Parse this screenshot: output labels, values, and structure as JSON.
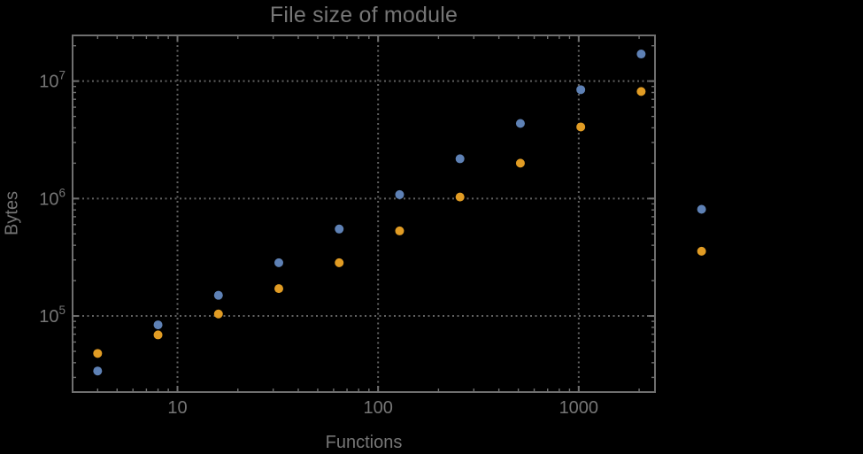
{
  "colors": {
    "background": "#000000",
    "frame": "#6f6f6f",
    "grid": "#616161",
    "text": "#767676",
    "series_blue": "#5e81b5",
    "series_orange": "#e19c24"
  },
  "chart_data": {
    "type": "scatter",
    "title": "File size of module",
    "xlabel": "Functions",
    "ylabel": "Bytes",
    "x_scale": "log",
    "y_scale": "log",
    "grid": "dotted lines at decades, on",
    "legend": "none",
    "xlim": [
      3,
      2400
    ],
    "ylim": [
      22500,
      24500000
    ],
    "clipping": false,
    "x_ticks": [
      {
        "label": "10",
        "value": 10
      },
      {
        "label": "100",
        "value": 100
      },
      {
        "label": "1000",
        "value": 1000
      }
    ],
    "y_ticks": [
      {
        "mantissa": "10",
        "exponent": "5",
        "value": 100000
      },
      {
        "mantissa": "10",
        "exponent": "6",
        "value": 1000000
      },
      {
        "mantissa": "10",
        "exponent": "7",
        "value": 10000000
      }
    ],
    "x": [
      4,
      8,
      16,
      32,
      64,
      128,
      256,
      512,
      1024,
      2048,
      4096
    ],
    "series": [
      {
        "name": "blue",
        "color": "#5e81b5",
        "values": [
          34000,
          84000,
          150000,
          284000,
          550000,
          1080000,
          2180000,
          4360000,
          8450000,
          17000000,
          810000
        ]
      },
      {
        "name": "orange",
        "color": "#e19c24",
        "values": [
          48000,
          69000,
          104000,
          171000,
          284000,
          530000,
          1030000,
          2000000,
          4070000,
          8160000,
          356000
        ]
      }
    ]
  }
}
